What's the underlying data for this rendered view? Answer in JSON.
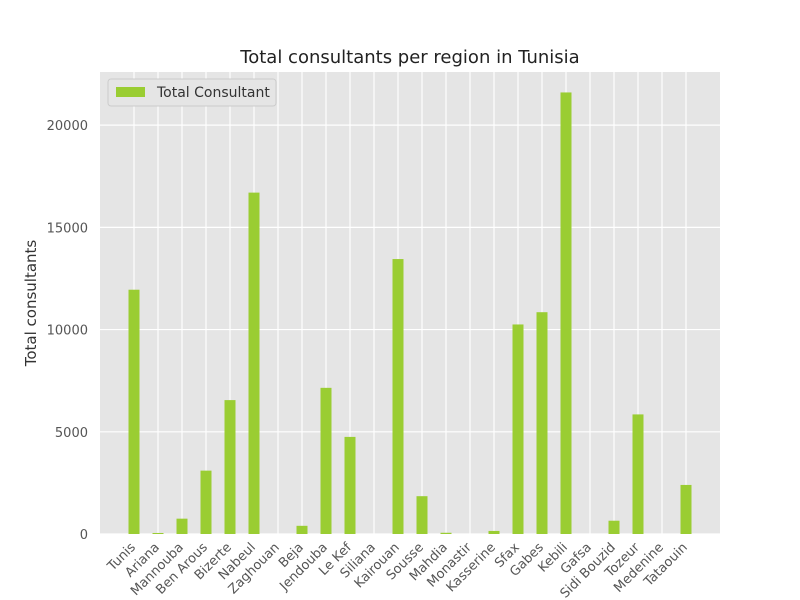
{
  "chart_data": {
    "type": "bar",
    "title": "Total consultants per region in Tunisia",
    "xlabel": "",
    "ylabel": "Total consultants",
    "ylim": [
      0,
      22600
    ],
    "yticks": [
      0,
      5000,
      10000,
      15000,
      20000
    ],
    "grid": true,
    "legend_position": "top-left",
    "categories": [
      "Tunis",
      "Ariana",
      "Mannouba",
      "Ben Arous",
      "Bizerte",
      "Nabeul",
      "Zaghouan",
      "Beja",
      "Jendouba",
      "Le Kef",
      "Siliana",
      "Kairouan",
      "Sousse",
      "Mahdia",
      "Monastir",
      "Kasserine",
      "Sfax",
      "Gabes",
      "Kebili",
      "Gafsa",
      "Sidi Bouzid",
      "Tozeur",
      "Medenine",
      "Tataouin"
    ],
    "series": [
      {
        "name": "Total Consultant",
        "color": "#9acd32",
        "values": [
          11950,
          50,
          750,
          3100,
          6550,
          16700,
          0,
          400,
          7150,
          4750,
          0,
          13450,
          1850,
          60,
          0,
          150,
          10250,
          10850,
          21600,
          0,
          650,
          5850,
          0,
          2400
        ]
      }
    ],
    "colors": {
      "plot_background": "#e5e5e5",
      "grid": "#ffffff",
      "bar": "#9acd32"
    }
  }
}
